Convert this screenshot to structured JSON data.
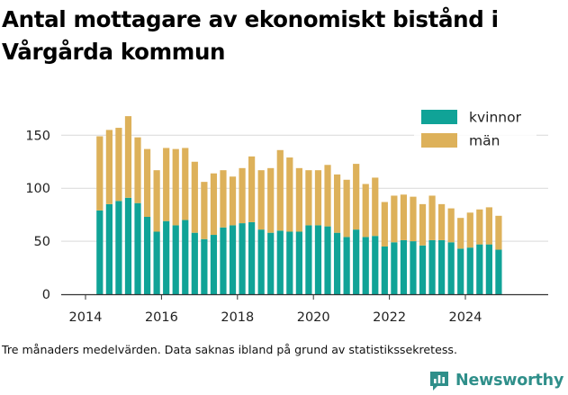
{
  "title": "Antal mottagare av ekonomiskt bistånd i Vårgårda kommun",
  "footnote": "Tre månaders medelvärden. Data saknas ibland på grund av statistikssekretess.",
  "brand": {
    "name": "Newsworthy",
    "icon": "newsworthy-logo-icon",
    "color": "#2f8f8a"
  },
  "colors": {
    "kvinnor": "#10a397",
    "man": "#ddb15a",
    "grid": "#d9d9d9",
    "axis": "#333333"
  },
  "chart_data": {
    "type": "bar",
    "stacked": true,
    "title": "Antal mottagare av ekonomiskt bistånd i Vårgårda kommun",
    "xlabel": "",
    "ylabel": "",
    "ylim": [
      0,
      175
    ],
    "xlim": [
      2014.0,
      2025.2
    ],
    "yticks": [
      0,
      50,
      100,
      150
    ],
    "xticks": [
      "2014",
      "2016",
      "2018",
      "2020",
      "2022",
      "2024"
    ],
    "grid": true,
    "legend_position": "top-right",
    "x_start": "2014-Q2",
    "x_step": "quarter",
    "series": [
      {
        "name": "kvinnor",
        "color": "#10a397",
        "values": [
          79,
          85,
          88,
          91,
          86,
          73,
          59,
          69,
          65,
          70,
          58,
          52,
          56,
          63,
          65,
          67,
          68,
          61,
          58,
          60,
          59,
          59,
          65,
          65,
          64,
          58,
          54,
          61,
          54,
          55,
          45,
          49,
          51,
          50,
          46,
          51,
          51,
          49,
          43,
          44,
          47,
          47,
          42
        ]
      },
      {
        "name": "män",
        "color": "#ddb15a",
        "values": [
          70,
          70,
          69,
          77,
          62,
          64,
          58,
          69,
          72,
          68,
          67,
          54,
          58,
          54,
          46,
          52,
          62,
          56,
          61,
          76,
          70,
          60,
          52,
          52,
          58,
          55,
          54,
          62,
          50,
          55,
          42,
          44,
          43,
          42,
          39,
          42,
          34,
          32,
          29,
          33,
          33,
          35,
          32
        ]
      }
    ]
  }
}
